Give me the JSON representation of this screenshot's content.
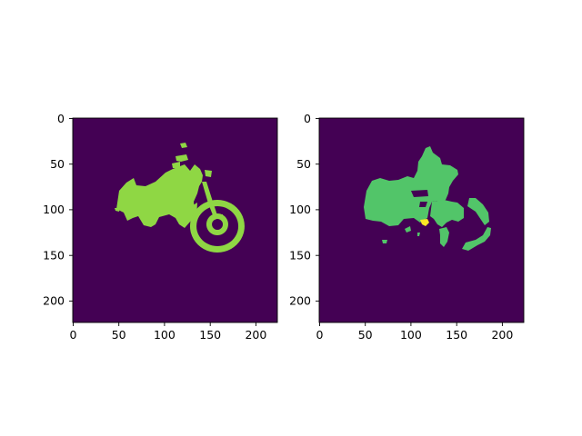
{
  "chart_data": [
    {
      "type": "heatmap",
      "title": "",
      "xlabel": "",
      "ylabel": "",
      "xlim": [
        0,
        224
      ],
      "ylim": [
        224,
        0
      ],
      "xticks": [
        0,
        50,
        100,
        150,
        200
      ],
      "yticks": [
        0,
        50,
        100,
        150,
        200
      ],
      "background_color": "#440154",
      "mask_color": "#8fd744",
      "colormap": "viridis",
      "description_regions": "motorcycle segmentation mask"
    },
    {
      "type": "heatmap",
      "title": "",
      "xlabel": "",
      "ylabel": "",
      "xlim": [
        0,
        224
      ],
      "ylim": [
        224,
        0
      ],
      "xticks": [
        0,
        50,
        100,
        150,
        200
      ],
      "yticks": [
        0,
        50,
        100,
        150,
        200
      ],
      "background_color": "#440154",
      "mask_color": "#52c569",
      "highlight_color": "#fde725",
      "colormap": "viridis"
    }
  ]
}
